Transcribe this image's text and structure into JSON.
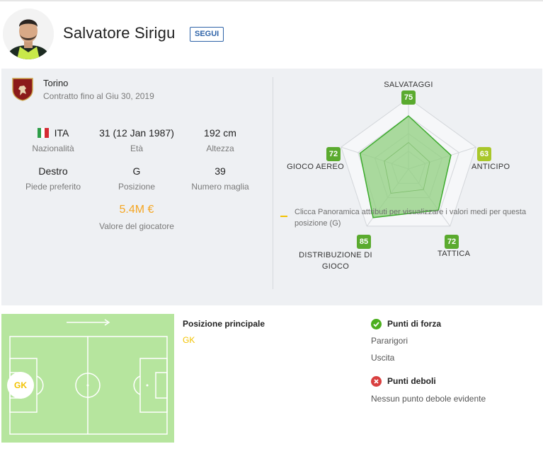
{
  "player": {
    "name": "Salvatore Sirigu",
    "follow_label": "SEGUI"
  },
  "club": {
    "name": "Torino",
    "contract": "Contratto fino al Giu 30, 2019"
  },
  "stats": [
    {
      "value": "ITA",
      "label": "Nazionalità"
    },
    {
      "value": "31 (12 Jan 1987)",
      "label": "Età"
    },
    {
      "value": "192 cm",
      "label": "Altezza"
    },
    {
      "value": "Destro",
      "label": "Piede preferito"
    },
    {
      "value": "G",
      "label": "Posizione"
    },
    {
      "value": "39",
      "label": "Numero maglia"
    }
  ],
  "market_value": {
    "value": "5.4M €",
    "label": "Valore del giocatore"
  },
  "attributes": [
    {
      "name": "SALVATAGGI",
      "value": 75
    },
    {
      "name": "ANTICIPO",
      "value": 63
    },
    {
      "name": "TATTICA",
      "value": 72
    },
    {
      "name": "DISTRIBUZIONE DI GIOCO",
      "value": 85
    },
    {
      "name": "GIOCO AEREO",
      "value": 72
    }
  ],
  "radar_note": "Clicca Panoramica attributi per visualizzare i valori medi per questa posizione (G)",
  "position": {
    "title": "Posizione principale",
    "value": "GK",
    "marker": "GK"
  },
  "strengths": {
    "title": "Punti di forza",
    "items": [
      "Pararigori",
      "Uscita"
    ]
  },
  "weaknesses": {
    "title": "Punti deboli",
    "items": [
      "Nessun punto debole evidente"
    ]
  },
  "colors": {
    "follow": "#2e63a8",
    "value": "#f5a623",
    "radar_fill": "#8fcf7d",
    "radar_stroke": "#3dab2d",
    "badge_high": "#5aaa2e",
    "badge_mid": "#a9c72a",
    "pitch": "#b6e59e",
    "gk_text": "#f2c200",
    "strength_icon": "#4caf1f",
    "weakness_icon": "#d94040"
  },
  "icons": {
    "strength": "check-circle-icon",
    "weakness": "x-circle-icon",
    "flag": "italy-flag-icon",
    "club": "torino-crest-icon"
  }
}
